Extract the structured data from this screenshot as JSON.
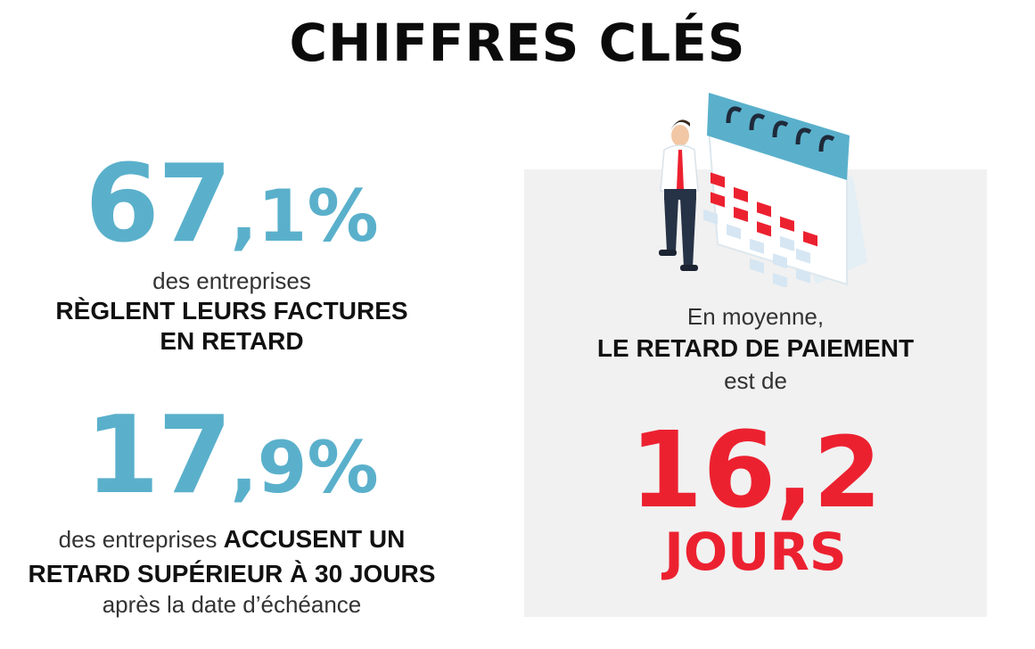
{
  "title": "CHIFFRES CLÉS",
  "stat1": {
    "value_int": "67",
    "value_dec": ",1%",
    "line1": "des entreprises",
    "line2": "RÈGLENT LEURS FACTURES",
    "line3": "EN RETARD"
  },
  "stat2": {
    "value_int": "17",
    "value_dec": ",9%",
    "line1_light": "des entreprises ",
    "line1_strong": "ACCUSENT UN",
    "line2": "RETARD SUPÉRIEUR À 30 JOURS",
    "line3": "après la date d’échéance"
  },
  "highlight": {
    "line1": "En moyenne,",
    "line2": "LE RETARD DE PAIEMENT",
    "line3": "est de",
    "value_int": "16",
    "value_dec": ",2",
    "unit": "JOURS"
  },
  "colors": {
    "accent_blue": "#5ab0cb",
    "accent_red": "#ec2130",
    "panel_bg": "#f1f1f1"
  },
  "illustration": "businessman-with-calendar-icon"
}
